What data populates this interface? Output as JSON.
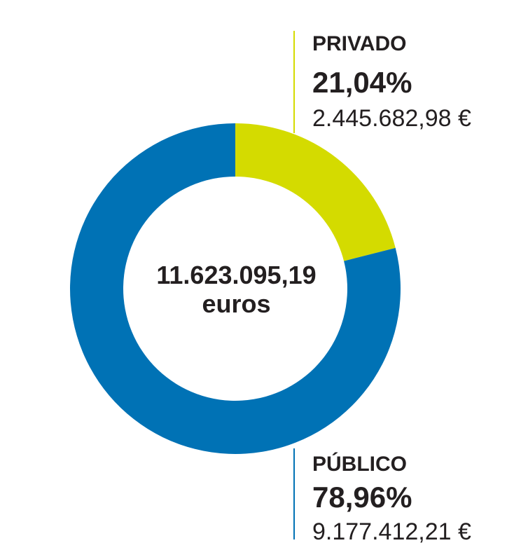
{
  "chart_data": {
    "type": "pie",
    "subtype": "donut",
    "total_label": "11.623.095,19",
    "total_unit": "euros",
    "slices": [
      {
        "name": "PRIVADO",
        "percent": 21.04,
        "percent_label": "21,04%",
        "amount_label": "2.445.682,98 €",
        "color": "#d4db00"
      },
      {
        "name": "PÚBLICO",
        "percent": 78.96,
        "percent_label": "78,96%",
        "amount_label": "9.177.412,21 €",
        "color": "#0072b5"
      }
    ]
  }
}
